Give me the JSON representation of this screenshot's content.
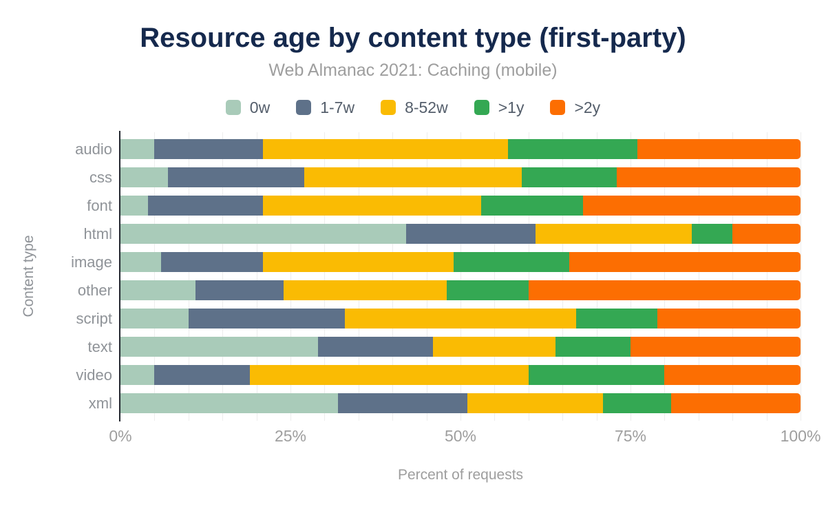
{
  "title": "Resource age by content type (first-party)",
  "subtitle": "Web Almanac 2021: Caching (mobile)",
  "chart_data": {
    "type": "bar",
    "orientation": "horizontal",
    "stacked": true,
    "title": "Resource age by content type (first-party)",
    "subtitle": "Web Almanac 2021: Caching (mobile)",
    "xlabel": "Percent of requests",
    "ylabel": "Content type",
    "xlim": [
      0,
      100
    ],
    "x_ticks": [
      "0%",
      "25%",
      "50%",
      "75%",
      "100%"
    ],
    "x_tick_values": [
      0,
      25,
      50,
      75,
      100
    ],
    "grid": true,
    "grid_step": 5,
    "legend_position": "top",
    "categories": [
      "audio",
      "css",
      "font",
      "html",
      "image",
      "other",
      "script",
      "text",
      "video",
      "xml"
    ],
    "series": [
      {
        "name": "0w",
        "color": "#a9cbb9",
        "values": [
          5,
          7,
          4,
          42,
          6,
          11,
          10,
          29,
          5,
          32
        ]
      },
      {
        "name": "1-7w",
        "color": "#5e7189",
        "values": [
          16,
          20,
          17,
          19,
          15,
          13,
          23,
          17,
          14,
          19
        ]
      },
      {
        "name": "8-52w",
        "color": "#fabb03",
        "values": [
          36,
          32,
          32,
          23,
          28,
          24,
          34,
          18,
          41,
          20
        ]
      },
      {
        "name": ">1y",
        "color": "#34a853",
        "values": [
          19,
          14,
          15,
          6,
          17,
          12,
          12,
          11,
          20,
          10
        ]
      },
      {
        "name": ">2y",
        "color": "#fc6e02",
        "values": [
          24,
          27,
          32,
          10,
          34,
          40,
          21,
          25,
          20,
          19
        ]
      }
    ]
  }
}
